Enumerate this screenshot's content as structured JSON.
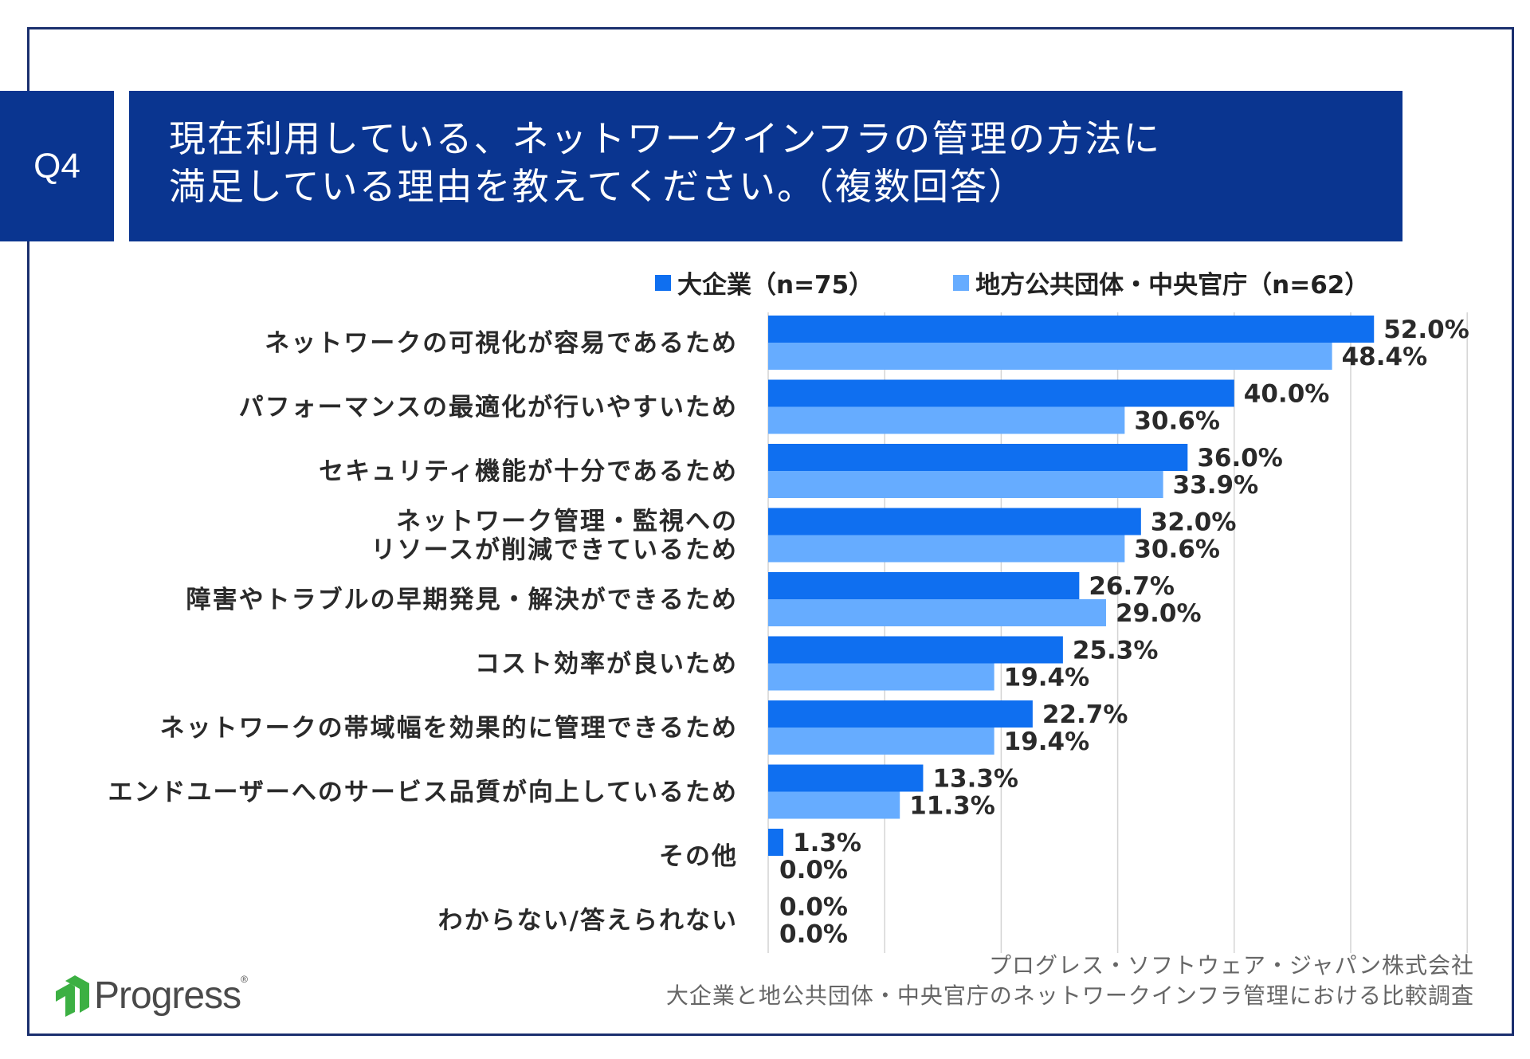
{
  "question_label": "Q4",
  "title_lines": [
    "現在利用している、ネットワークインフラの管理の方法に",
    "満足している理由を教えてください。（複数回答）"
  ],
  "legend": {
    "series1": "大企業（n=75）",
    "series2": "地方公共団体・中央官庁（n=62）"
  },
  "colors": {
    "series1": "#0f6ff0",
    "series2": "#66acff",
    "header": "#0a3590",
    "logo_green": "#3cb043"
  },
  "chart_data": {
    "type": "bar",
    "orientation": "horizontal",
    "categories": [
      [
        "ネットワークの可視化が容易であるため"
      ],
      [
        "パフォーマンスの最適化が行いやすいため"
      ],
      [
        "セキュリティ機能が十分であるため"
      ],
      [
        "ネットワーク管理・監視への",
        "リソースが削減できているため"
      ],
      [
        "障害やトラブルの早期発見・解決ができるため"
      ],
      [
        "コスト効率が良いため"
      ],
      [
        "ネットワークの帯域幅を効果的に管理できるため"
      ],
      [
        "エンドユーザーへのサービス品質が向上しているため"
      ],
      [
        "その他"
      ],
      [
        "わからない/答えられない"
      ]
    ],
    "series": [
      {
        "name": "大企業（n=75）",
        "values": [
          52.0,
          40.0,
          36.0,
          32.0,
          26.7,
          25.3,
          22.7,
          13.3,
          1.3,
          0.0
        ]
      },
      {
        "name": "地方公共団体・中央官庁（n=62）",
        "values": [
          48.4,
          30.6,
          33.9,
          30.6,
          29.0,
          19.4,
          19.4,
          11.3,
          0.0,
          0.0
        ]
      }
    ],
    "value_format": "%",
    "xlim": [
      0,
      60
    ],
    "grid": true
  },
  "source_lines": [
    "プログレス・ソフトウェア・ジャパン株式会社",
    "大企業と地公共団体・中央官庁のネットワークインフラ管理における比較調査"
  ],
  "logo_text": "Progress"
}
